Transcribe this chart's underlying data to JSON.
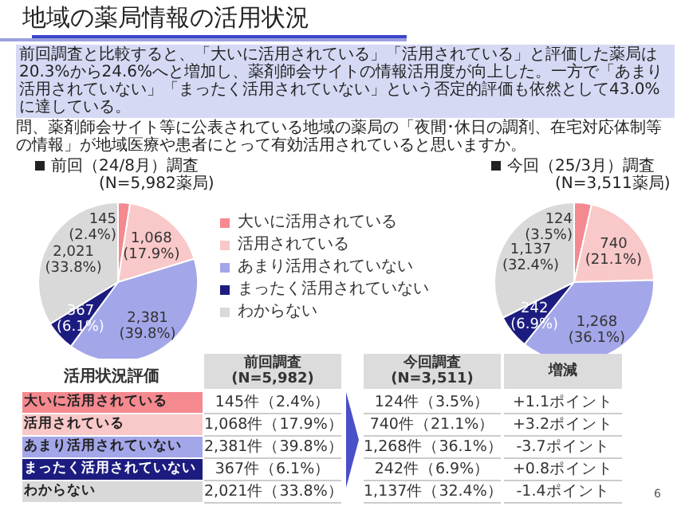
{
  "chart_data": [
    {
      "type": "other",
      "title": "地域の薬局情報の活用状況",
      "subtitle": "前回調査と比較すると、「大いに活用されている」「活用されている」と評価した薬局は20.3%から24.6%へと増加し、薬剤師会サイトの情報活用度が向上した。一方で「あまり活用されていない」「まったく活用されていない」という否定的評価も依然として43.0%に達している。",
      "annotations": [
        "問、薬剤師会サイト等に公表されている地域の薬局の「夜間･休日の調剤、在宅対応体制等の情報」が地域医療や患者にとって有効活用されていると思いますか。"
      ]
    },
    {
      "type": "pie",
      "categories": [
        "大いに活用されている",
        "活用されている",
        "あまり活用されていない",
        "まったく活用されていない",
        "わからない"
      ],
      "legend": "right",
      "annotations": [
        "(N=5,982薬局)",
        "(N=3,511薬局)"
      ],
      "series": [
        {
          "name": "前回（24/8月）調査",
          "values": [
            145,
            1068,
            2381,
            367,
            2021
          ],
          "value_labels": [
            "145 (2.4%)",
            "1,068 (17.9%)",
            "2,381 (39.8%)",
            "367 (6.1%)",
            "2,021 (33.8%)"
          ],
          "colors": [
            "#f4898f",
            "#f9c8c8",
            "#a3a6e8",
            "#1c1c80",
            "#d9d9d9"
          ]
        },
        {
          "name": "今回（25/3月）調査",
          "values": [
            124,
            740,
            1268,
            242,
            1137
          ],
          "value_labels": [
            "124 (3.5%)",
            "740 (21.1%)",
            "1,268 (36.1%)",
            "242 (6.9%)",
            "1,137 (32.4%)"
          ],
          "colors": [
            "#f4898f",
            "#f9c8c8",
            "#a3a6e8",
            "#1c1c80",
            "#d9d9d9"
          ]
        }
      ]
    },
    {
      "type": "other",
      "title": "活用状況評価",
      "categories": [
        "大いに活用されている",
        "活用されている",
        "あまり活用されていない",
        "まったく活用されていない",
        "わからない"
      ],
      "colors": [
        "#f4898f",
        "#f9c8c8",
        "#a3a6e8",
        "#1c1c80",
        "#d9d9d9"
      ],
      "series": [
        {
          "name": "前回調査 (N=5,982)",
          "values": [
            145,
            1068,
            2381,
            367,
            2021
          ],
          "value_labels": [
            "145件（2.4%）",
            "1,068件（17.9%）",
            "2,381件（39.8%）",
            "367件（6.1%）",
            "2,021件（33.8%）"
          ]
        },
        {
          "name": "今回調査 (N=3,511)",
          "values": [
            124,
            740,
            1268,
            242,
            1137
          ],
          "value_labels": [
            "124件（3.5%）",
            "740件（21.1%）",
            "1,268件（36.1%）",
            "242件（6.9%）",
            "1,137件（32.4%）"
          ]
        },
        {
          "name": "増減",
          "values": [
            1.1,
            3.2,
            -3.7,
            0.8,
            -1.4
          ],
          "value_labels": [
            "+1.1ポイント",
            "+3.2ポイント",
            "-3.7ポイント",
            "+0.8ポイント",
            "-1.4ポイント"
          ]
        }
      ],
      "annotations": [
        "6"
      ]
    }
  ]
}
